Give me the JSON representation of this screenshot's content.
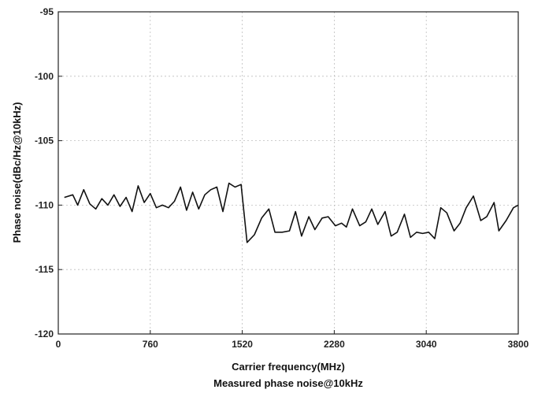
{
  "chart_data": {
    "type": "line",
    "title": "",
    "xlabel": "Carrier frequency(MHz)",
    "ylabel": "Phase noise(dBc/Hz@10kHz)",
    "xlim": [
      0,
      3800
    ],
    "ylim": [
      -120,
      -95
    ],
    "xticks": [
      0,
      760,
      1520,
      2280,
      3040,
      3800
    ],
    "yticks": [
      -120,
      -115,
      -110,
      -105,
      -100,
      -95
    ],
    "grid": true,
    "series": [
      {
        "color": "#111111",
        "x": [
          50,
          120,
          160,
          210,
          260,
          310,
          360,
          410,
          460,
          510,
          560,
          610,
          660,
          710,
          760,
          810,
          860,
          910,
          960,
          1010,
          1060,
          1110,
          1160,
          1210,
          1260,
          1310,
          1360,
          1410,
          1460,
          1510,
          1560,
          1620,
          1680,
          1740,
          1790,
          1850,
          1910,
          1960,
          2010,
          2070,
          2120,
          2180,
          2230,
          2290,
          2340,
          2380,
          2430,
          2490,
          2540,
          2590,
          2640,
          2700,
          2750,
          2800,
          2860,
          2910,
          2960,
          3010,
          3060,
          3110,
          3160,
          3210,
          3270,
          3320,
          3370,
          3430,
          3490,
          3540,
          3600,
          3640,
          3700,
          3760,
          3800
        ],
        "y": [
          -109.4,
          -109.2,
          -110.0,
          -108.8,
          -109.9,
          -110.3,
          -109.5,
          -110.0,
          -109.2,
          -110.1,
          -109.4,
          -110.5,
          -108.5,
          -109.8,
          -109.1,
          -110.2,
          -110.0,
          -110.2,
          -109.7,
          -108.6,
          -110.4,
          -109.0,
          -110.3,
          -109.2,
          -108.8,
          -108.6,
          -110.5,
          -108.3,
          -108.6,
          -108.4,
          -112.9,
          -112.3,
          -111.0,
          -110.3,
          -112.1,
          -112.1,
          -112.0,
          -110.5,
          -112.4,
          -110.9,
          -111.9,
          -111.0,
          -110.9,
          -111.6,
          -111.4,
          -111.7,
          -110.3,
          -111.6,
          -111.3,
          -110.3,
          -111.5,
          -110.5,
          -112.4,
          -112.1,
          -110.7,
          -112.5,
          -112.1,
          -112.2,
          -112.1,
          -112.6,
          -110.2,
          -110.6,
          -112.0,
          -111.4,
          -110.2,
          -109.3,
          -111.2,
          -110.9,
          -109.8,
          -112.0,
          -111.2,
          -110.2,
          -110.0
        ]
      }
    ]
  },
  "caption": "Measured phase noise@10kHz"
}
